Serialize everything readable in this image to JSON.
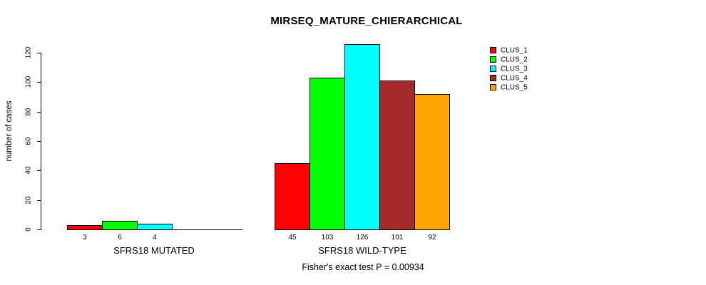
{
  "chart_data": {
    "type": "bar",
    "title": "MIRSEQ_MATURE_CHIERARCHICAL",
    "ylabel": "number of cases",
    "ylim": [
      0,
      120
    ],
    "yticks": [
      0,
      20,
      40,
      60,
      80,
      100,
      120
    ],
    "categories": [
      "SFRS18 MUTATED",
      "SFRS18 WILD-TYPE"
    ],
    "series": [
      {
        "name": "CLUS_1",
        "color": "#ff0000",
        "values": [
          3,
          45
        ]
      },
      {
        "name": "CLUS_2",
        "color": "#00ff00",
        "values": [
          6,
          103
        ]
      },
      {
        "name": "CLUS_3",
        "color": "#00ffff",
        "values": [
          4,
          126
        ]
      },
      {
        "name": "CLUS_4",
        "color": "#a52a2a",
        "values": [
          0,
          101
        ]
      },
      {
        "name": "CLUS_5",
        "color": "#ffa500",
        "values": [
          0,
          92
        ]
      }
    ],
    "bar_value_labels_shown": true,
    "legend_position": "top-right",
    "grid": false,
    "annotation": "Fisher's exact test P = 0.00934"
  }
}
